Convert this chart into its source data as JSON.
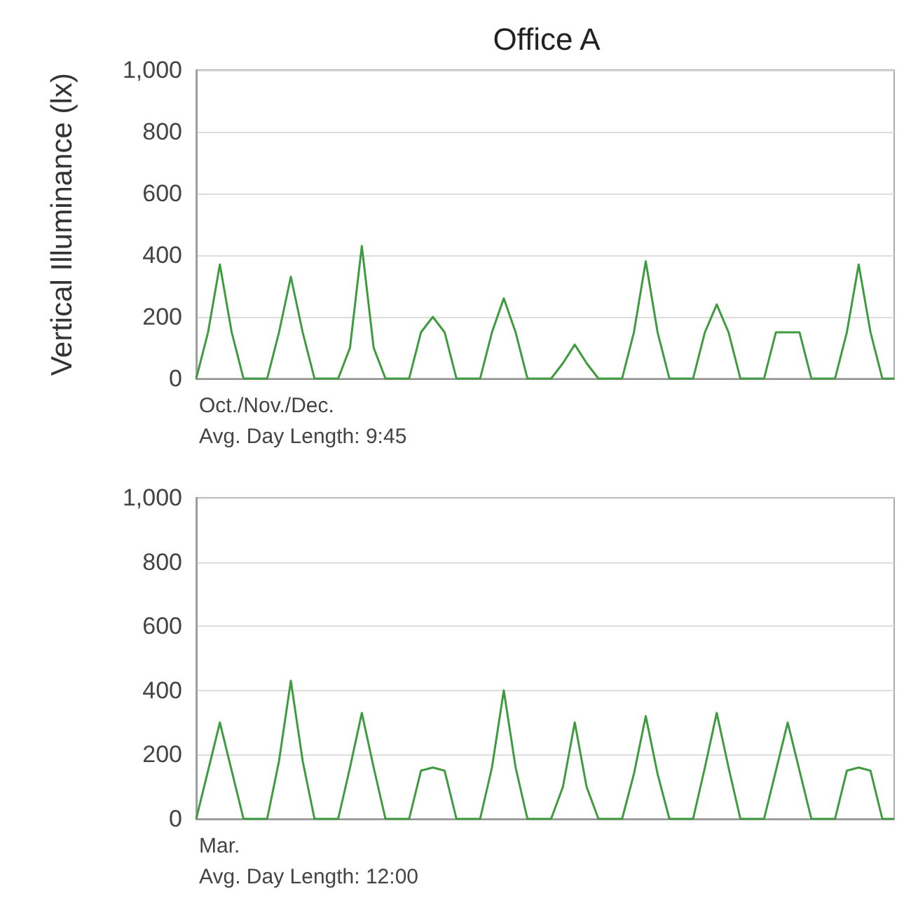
{
  "chart_data": [
    {
      "type": "line",
      "title": "Office A",
      "ylabel": "Vertical Illuminance (lx)",
      "annotations": [
        "Oct./Nov./Dec.",
        "Avg. Day Length: 9:45"
      ],
      "categories": [
        null,
        null,
        null,
        null,
        null,
        null,
        null,
        null,
        null,
        null,
        null,
        null,
        null,
        null,
        null,
        null,
        null,
        null,
        null,
        null,
        null,
        null,
        null,
        null,
        null,
        null,
        null,
        null,
        null,
        null,
        null,
        null,
        null,
        null,
        null,
        null,
        null,
        null,
        null,
        null,
        null,
        null,
        null,
        null,
        null,
        null,
        null,
        null,
        null,
        null,
        null,
        null,
        null,
        null,
        null,
        null,
        null,
        null,
        null,
        null
      ],
      "series": [
        {
          "color": "#3f9b3f",
          "values": [
            0,
            150,
            370,
            150,
            0,
            0,
            0,
            150,
            330,
            150,
            0,
            0,
            0,
            100,
            430,
            100,
            0,
            0,
            0,
            150,
            200,
            150,
            0,
            0,
            0,
            150,
            260,
            150,
            0,
            0,
            0,
            50,
            110,
            50,
            0,
            0,
            0,
            150,
            380,
            150,
            0,
            0,
            0,
            150,
            240,
            150,
            0,
            0,
            0,
            150,
            150,
            150,
            0,
            0,
            0,
            150,
            370,
            150,
            0,
            0
          ]
        }
      ],
      "ylim": [
        0,
        1000
      ],
      "yticks": [
        0,
        200,
        400,
        600,
        800,
        {
          "value": 1000,
          "label": "1,000"
        }
      ],
      "grid": "y",
      "tick_labels": "y"
    },
    {
      "type": "line",
      "annotations": [
        "Mar.",
        "Avg. Day Length: 12:00"
      ],
      "categories": [
        null,
        null,
        null,
        null,
        null,
        null,
        null,
        null,
        null,
        null,
        null,
        null,
        null,
        null,
        null,
        null,
        null,
        null,
        null,
        null,
        null,
        null,
        null,
        null,
        null,
        null,
        null,
        null,
        null,
        null,
        null,
        null,
        null,
        null,
        null,
        null,
        null,
        null,
        null,
        null,
        null,
        null,
        null,
        null,
        null,
        null,
        null,
        null,
        null,
        null,
        null,
        null,
        null,
        null,
        null,
        null,
        null,
        null,
        null,
        null
      ],
      "series": [
        {
          "color": "#3f9b3f",
          "values": [
            0,
            150,
            300,
            150,
            0,
            0,
            0,
            180,
            430,
            180,
            0,
            0,
            0,
            160,
            330,
            160,
            0,
            0,
            0,
            150,
            160,
            150,
            0,
            0,
            0,
            160,
            400,
            160,
            0,
            0,
            0,
            100,
            300,
            100,
            0,
            0,
            0,
            140,
            320,
            140,
            0,
            0,
            0,
            160,
            330,
            160,
            0,
            0,
            0,
            150,
            300,
            150,
            0,
            0,
            0,
            150,
            160,
            150,
            0,
            0
          ]
        }
      ],
      "ylim": [
        0,
        1000
      ],
      "yticks": [
        0,
        200,
        400,
        600,
        800,
        {
          "value": 1000,
          "label": "1,000"
        }
      ],
      "grid": "y",
      "tick_labels": "y"
    }
  ]
}
